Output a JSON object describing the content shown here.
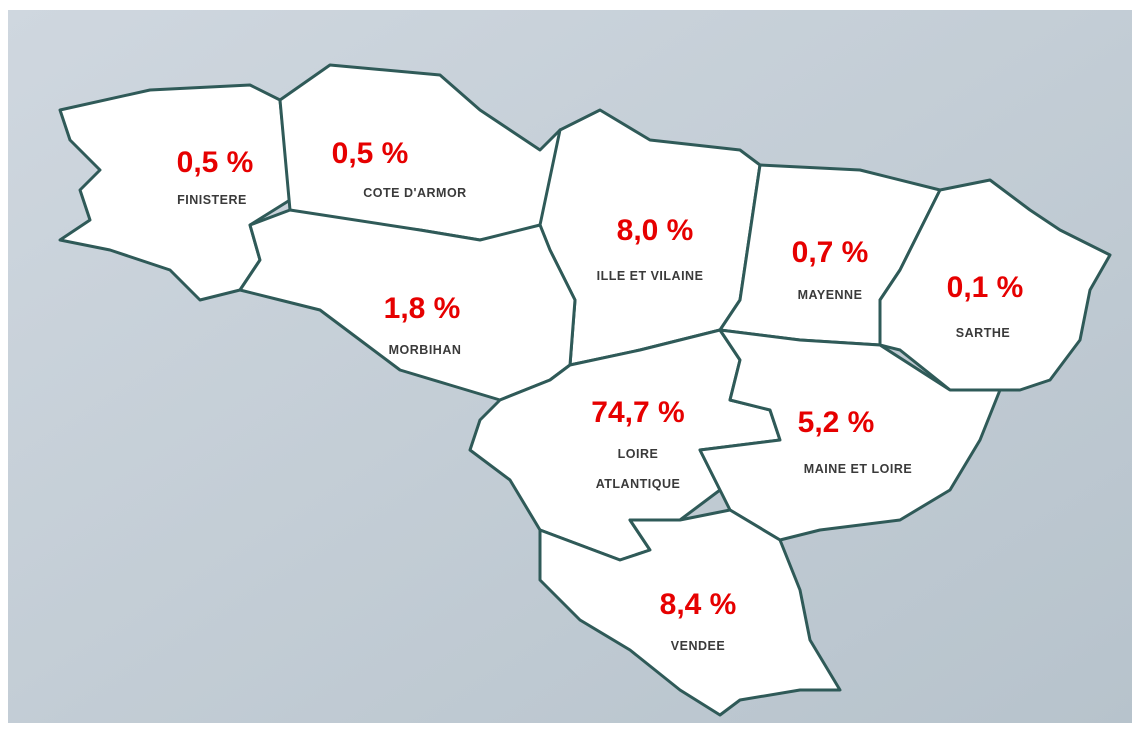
{
  "map": {
    "regions": [
      {
        "name_lines": [
          "FINISTERE"
        ],
        "share": "0,5 %"
      },
      {
        "name_lines": [
          "COTE D'ARMOR"
        ],
        "share": "0,5 %"
      },
      {
        "name_lines": [
          "ILLE ET VILAINE"
        ],
        "share": "8,0 %"
      },
      {
        "name_lines": [
          "MAYENNE"
        ],
        "share": "0,7 %"
      },
      {
        "name_lines": [
          "SARTHE"
        ],
        "share": "0,1 %"
      },
      {
        "name_lines": [
          "MORBIHAN"
        ],
        "share": "1,8 %"
      },
      {
        "name_lines": [
          "LOIRE",
          "ATLANTIQUE"
        ],
        "share": "74,7 %"
      },
      {
        "name_lines": [
          "MAINE ET LOIRE"
        ],
        "share": "5,2 %"
      },
      {
        "name_lines": [
          "VENDEE"
        ],
        "share": "8,4 %"
      }
    ]
  }
}
